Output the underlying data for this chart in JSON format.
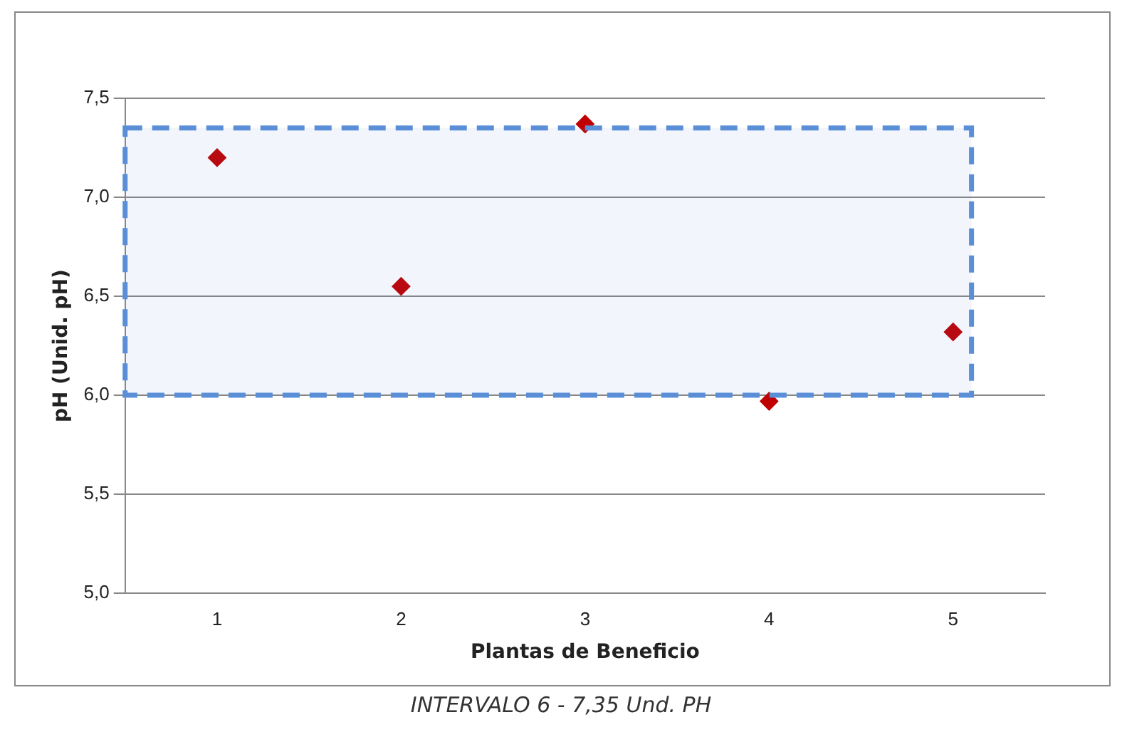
{
  "chart_data": {
    "type": "scatter",
    "xlabel": "Plantas de Beneficio",
    "ylabel": "pH (Unid. pH)",
    "categories": [
      "1",
      "2",
      "3",
      "4",
      "5"
    ],
    "series": [
      {
        "color": "#c00000",
        "values": [
          7.2,
          6.55,
          7.37,
          5.97,
          6.32
        ]
      }
    ],
    "ylim": [
      5,
      7.5
    ],
    "yticks": [
      {
        "value": 5,
        "label": "5,0"
      },
      {
        "value": 5.5,
        "label": "5,5"
      },
      {
        "value": 6,
        "label": "6,0"
      },
      {
        "value": 6.5,
        "label": "6,5"
      },
      {
        "value": 7,
        "label": "7,0"
      },
      {
        "value": 7.5,
        "label": "7,5"
      }
    ],
    "bands": [
      {
        "axis": "y",
        "from": 6,
        "to": 7.35,
        "color": "#5a8fd8"
      }
    ],
    "grid": "y",
    "legend": false,
    "marker": "diamond",
    "annotations": [
      "INTERVALO 6 - 7,35 Und. PH"
    ]
  }
}
